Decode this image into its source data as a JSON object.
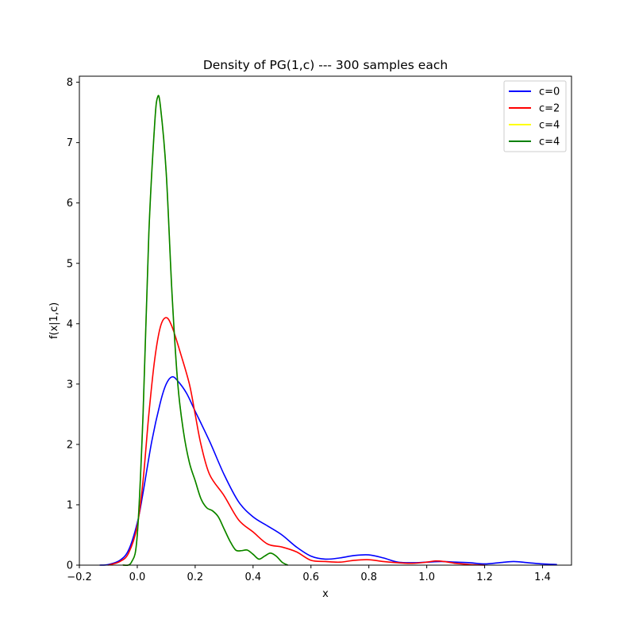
{
  "chart_data": {
    "type": "line",
    "title": "Density of PG(1,c) --- 300 samples each",
    "xlabel": "x",
    "ylabel": "f(x|1,c)",
    "xlim": [
      -0.2,
      1.5
    ],
    "ylim": [
      0,
      8.1
    ],
    "xticks": [
      -0.2,
      0.0,
      0.2,
      0.4,
      0.6,
      0.8,
      1.0,
      1.2,
      1.4
    ],
    "xtick_labels": [
      "−0.2",
      "0.0",
      "0.2",
      "0.4",
      "0.6",
      "0.8",
      "1.0",
      "1.2",
      "1.4"
    ],
    "yticks": [
      0,
      1,
      2,
      3,
      4,
      5,
      6,
      7,
      8
    ],
    "ytick_labels": [
      "0",
      "1",
      "2",
      "3",
      "4",
      "5",
      "6",
      "7",
      "8"
    ],
    "grid": false,
    "legend_position": "top-right",
    "series": [
      {
        "name": "c=0",
        "color": "#0000ff",
        "points": [
          [
            -0.13,
            0.0
          ],
          [
            -0.1,
            0.01
          ],
          [
            -0.06,
            0.08
          ],
          [
            -0.03,
            0.25
          ],
          [
            0.0,
            0.7
          ],
          [
            0.02,
            1.2
          ],
          [
            0.05,
            2.05
          ],
          [
            0.08,
            2.7
          ],
          [
            0.1,
            3.0
          ],
          [
            0.12,
            3.12
          ],
          [
            0.14,
            3.05
          ],
          [
            0.17,
            2.85
          ],
          [
            0.2,
            2.55
          ],
          [
            0.25,
            2.05
          ],
          [
            0.3,
            1.5
          ],
          [
            0.35,
            1.05
          ],
          [
            0.4,
            0.8
          ],
          [
            0.45,
            0.65
          ],
          [
            0.5,
            0.5
          ],
          [
            0.55,
            0.3
          ],
          [
            0.6,
            0.15
          ],
          [
            0.65,
            0.1
          ],
          [
            0.7,
            0.12
          ],
          [
            0.75,
            0.16
          ],
          [
            0.8,
            0.17
          ],
          [
            0.85,
            0.12
          ],
          [
            0.9,
            0.05
          ],
          [
            0.95,
            0.04
          ],
          [
            1.0,
            0.05
          ],
          [
            1.05,
            0.06
          ],
          [
            1.1,
            0.05
          ],
          [
            1.15,
            0.04
          ],
          [
            1.2,
            0.02
          ],
          [
            1.25,
            0.04
          ],
          [
            1.3,
            0.06
          ],
          [
            1.35,
            0.04
          ],
          [
            1.4,
            0.02
          ],
          [
            1.45,
            0.01
          ]
        ]
      },
      {
        "name": "c=2",
        "color": "#ff0000",
        "points": [
          [
            -0.1,
            0.0
          ],
          [
            -0.06,
            0.06
          ],
          [
            -0.03,
            0.2
          ],
          [
            0.0,
            0.65
          ],
          [
            0.02,
            1.4
          ],
          [
            0.04,
            2.5
          ],
          [
            0.06,
            3.4
          ],
          [
            0.08,
            3.95
          ],
          [
            0.1,
            4.1
          ],
          [
            0.12,
            3.95
          ],
          [
            0.15,
            3.5
          ],
          [
            0.18,
            3.0
          ],
          [
            0.2,
            2.5
          ],
          [
            0.22,
            2.0
          ],
          [
            0.25,
            1.5
          ],
          [
            0.3,
            1.15
          ],
          [
            0.35,
            0.75
          ],
          [
            0.4,
            0.55
          ],
          [
            0.45,
            0.35
          ],
          [
            0.5,
            0.3
          ],
          [
            0.55,
            0.22
          ],
          [
            0.6,
            0.08
          ],
          [
            0.65,
            0.06
          ],
          [
            0.7,
            0.05
          ],
          [
            0.75,
            0.08
          ],
          [
            0.8,
            0.09
          ],
          [
            0.85,
            0.06
          ],
          [
            0.9,
            0.04
          ],
          [
            0.95,
            0.03
          ],
          [
            1.0,
            0.05
          ],
          [
            1.03,
            0.07
          ],
          [
            1.06,
            0.06
          ],
          [
            1.1,
            0.03
          ],
          [
            1.15,
            0.01
          ],
          [
            1.2,
            0.0
          ]
        ]
      },
      {
        "name": "c=4",
        "color": "#ffff00",
        "points": [
          [
            -0.05,
            0.0
          ],
          [
            -0.02,
            0.05
          ],
          [
            0.0,
            0.5
          ],
          [
            0.02,
            2.5
          ],
          [
            0.04,
            5.5
          ],
          [
            0.06,
            7.3
          ],
          [
            0.07,
            7.75
          ],
          [
            0.08,
            7.6
          ],
          [
            0.1,
            6.5
          ],
          [
            0.12,
            4.5
          ],
          [
            0.14,
            3.0
          ],
          [
            0.16,
            2.2
          ],
          [
            0.18,
            1.7
          ],
          [
            0.2,
            1.4
          ],
          [
            0.22,
            1.1
          ],
          [
            0.24,
            0.95
          ],
          [
            0.26,
            0.9
          ],
          [
            0.28,
            0.8
          ],
          [
            0.3,
            0.6
          ],
          [
            0.32,
            0.4
          ],
          [
            0.34,
            0.25
          ],
          [
            0.36,
            0.24
          ],
          [
            0.38,
            0.25
          ],
          [
            0.4,
            0.18
          ],
          [
            0.42,
            0.1
          ],
          [
            0.44,
            0.15
          ],
          [
            0.46,
            0.2
          ],
          [
            0.48,
            0.15
          ],
          [
            0.5,
            0.05
          ],
          [
            0.52,
            0.0
          ]
        ]
      },
      {
        "name": "c=4",
        "color": "#008000",
        "points": [
          [
            -0.05,
            0.0
          ],
          [
            -0.02,
            0.05
          ],
          [
            0.0,
            0.5
          ],
          [
            0.02,
            2.5
          ],
          [
            0.04,
            5.5
          ],
          [
            0.06,
            7.3
          ],
          [
            0.07,
            7.75
          ],
          [
            0.08,
            7.6
          ],
          [
            0.1,
            6.5
          ],
          [
            0.12,
            4.5
          ],
          [
            0.14,
            3.0
          ],
          [
            0.16,
            2.2
          ],
          [
            0.18,
            1.7
          ],
          [
            0.2,
            1.4
          ],
          [
            0.22,
            1.1
          ],
          [
            0.24,
            0.95
          ],
          [
            0.26,
            0.9
          ],
          [
            0.28,
            0.8
          ],
          [
            0.3,
            0.6
          ],
          [
            0.32,
            0.4
          ],
          [
            0.34,
            0.25
          ],
          [
            0.36,
            0.24
          ],
          [
            0.38,
            0.25
          ],
          [
            0.4,
            0.18
          ],
          [
            0.42,
            0.1
          ],
          [
            0.44,
            0.15
          ],
          [
            0.46,
            0.2
          ],
          [
            0.48,
            0.15
          ],
          [
            0.5,
            0.05
          ],
          [
            0.52,
            0.0
          ]
        ]
      }
    ]
  }
}
